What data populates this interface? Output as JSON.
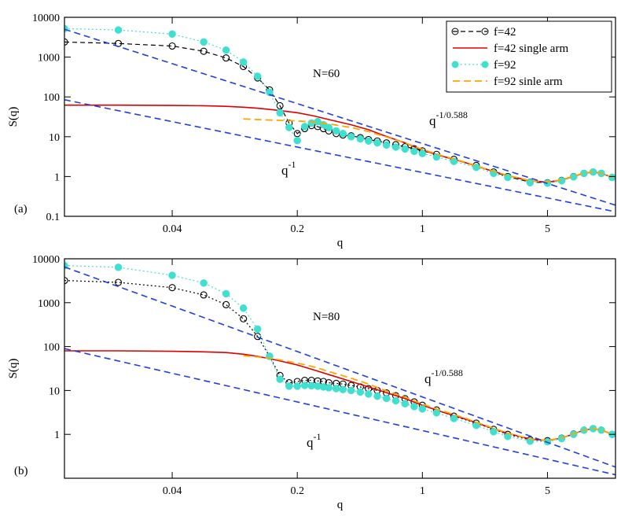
{
  "chart_data": [
    {
      "type": "line",
      "panel_label": "(a)",
      "annotation": "N=60",
      "xlabel": "q",
      "ylabel": "S(q)",
      "xscale": "log",
      "yscale": "log",
      "xlim": [
        0.01,
        12
      ],
      "ylim": [
        0.1,
        10000
      ],
      "x_ticks": [
        0.04,
        0.2,
        1,
        5
      ],
      "x_tick_labels": [
        "0.04",
        "0.2",
        "1",
        "5"
      ],
      "y_ticks": [
        0.1,
        1,
        10,
        100,
        1000,
        10000
      ],
      "y_tick_labels": [
        "0.1",
        "1",
        "10",
        "100",
        "1000",
        "10000"
      ],
      "power_law_labels": [
        {
          "base": "q",
          "exponent": "-1/0.588"
        },
        {
          "base": "q",
          "exponent": "-1"
        }
      ],
      "legend": [
        "f=42",
        "f=42 single arm",
        "f=92",
        "f=92 sinle arm"
      ],
      "series": [
        {
          "name": "f=42",
          "style": "black-open-circles-dashed",
          "color": "#000000",
          "x": [
            0.01,
            0.02,
            0.04,
            0.06,
            0.08,
            0.1,
            0.12,
            0.14,
            0.16,
            0.18,
            0.2,
            0.22,
            0.24,
            0.26,
            0.28,
            0.3,
            0.33,
            0.36,
            0.4,
            0.45,
            0.5,
            0.56,
            0.63,
            0.71,
            0.8,
            0.9,
            1.0,
            1.2,
            1.5,
            2.0,
            2.5,
            3.0,
            4.0,
            5.0,
            6.0,
            7.0,
            8.0,
            9.0,
            10.0,
            11.5
          ],
          "y": [
            2400,
            2200,
            1900,
            1400,
            950,
            580,
            300,
            150,
            60,
            22,
            12,
            16,
            19,
            18,
            16,
            14,
            12,
            11,
            10.5,
            9.5,
            8.5,
            7.8,
            7.0,
            6.3,
            5.6,
            5.0,
            4.4,
            3.6,
            2.7,
            1.9,
            1.3,
            1.0,
            0.72,
            0.7,
            0.8,
            1.0,
            1.2,
            1.3,
            1.2,
            0.95
          ]
        },
        {
          "name": "f=42 single arm",
          "style": "red-solid",
          "color": "#dd0000",
          "x": [
            0.01,
            0.02,
            0.04,
            0.06,
            0.08,
            0.1,
            0.12,
            0.15,
            0.2,
            0.25,
            0.3,
            0.4,
            0.5,
            0.6,
            0.8,
            1.0,
            1.3,
            1.7,
            2.2,
            3.0,
            4.0,
            5.0,
            6.0,
            7.0,
            8.0,
            9.0,
            10.0,
            11.5
          ],
          "y": [
            62,
            62,
            61,
            60,
            58,
            55,
            52,
            47,
            40,
            33,
            27,
            20,
            15,
            11,
            7.0,
            4.6,
            3.2,
            2.3,
            1.6,
            1.05,
            0.78,
            0.72,
            0.82,
            1.0,
            1.2,
            1.3,
            1.2,
            0.95
          ]
        },
        {
          "name": "f=92",
          "style": "turquoise-filled-circles-dotted",
          "color": "#40e0d0",
          "x": [
            0.01,
            0.02,
            0.04,
            0.06,
            0.08,
            0.1,
            0.12,
            0.14,
            0.16,
            0.18,
            0.2,
            0.22,
            0.24,
            0.26,
            0.28,
            0.3,
            0.33,
            0.36,
            0.4,
            0.45,
            0.5,
            0.56,
            0.63,
            0.71,
            0.8,
            0.9,
            1.0,
            1.2,
            1.5,
            2.0,
            2.5,
            3.0,
            4.0,
            5.0,
            6.0,
            7.0,
            8.0,
            9.0,
            10.0,
            11.5
          ],
          "y": [
            5200,
            4800,
            3800,
            2400,
            1500,
            750,
            330,
            130,
            40,
            17,
            8,
            18,
            22,
            24,
            20,
            17,
            14,
            12,
            10,
            8.8,
            7.8,
            7.0,
            6.2,
            5.5,
            4.9,
            4.3,
            3.8,
            3.1,
            2.4,
            1.7,
            1.2,
            0.95,
            0.7,
            0.68,
            0.78,
            0.98,
            1.2,
            1.3,
            1.2,
            0.95
          ]
        },
        {
          "name": "f=92 sinle arm",
          "style": "orange-dashed",
          "color": "#ffa500",
          "x": [
            0.1,
            0.12,
            0.15,
            0.2,
            0.25,
            0.3,
            0.4,
            0.5,
            0.6,
            0.8,
            1.0,
            1.3,
            1.7,
            2.2,
            3.0,
            4.0,
            5.0,
            6.0,
            7.0,
            8.0,
            9.0,
            10.0,
            11.5
          ],
          "y": [
            28,
            27,
            26,
            25,
            23,
            21,
            17,
            13.5,
            10.5,
            7.0,
            4.8,
            3.3,
            2.35,
            1.62,
            1.06,
            0.79,
            0.73,
            0.83,
            1.02,
            1.22,
            1.32,
            1.22,
            0.96
          ]
        },
        {
          "name": "power law q^-1/0.588",
          "style": "blue-dashed",
          "color": "#1f3fdf",
          "x": [
            0.01,
            12
          ],
          "y": [
            5000,
            0.19
          ]
        },
        {
          "name": "power law q^-1",
          "style": "blue-dashed",
          "color": "#1f3fdf",
          "x": [
            0.01,
            12
          ],
          "y": [
            85,
            0.13
          ]
        }
      ]
    },
    {
      "type": "line",
      "panel_label": "(b)",
      "annotation": "N=80",
      "xlabel": "q",
      "ylabel": "S(q)",
      "xscale": "log",
      "yscale": "log",
      "xlim": [
        0.01,
        12
      ],
      "ylim": [
        0.1,
        10000
      ],
      "x_ticks": [
        0.04,
        0.2,
        1,
        5
      ],
      "x_tick_labels": [
        "0.04",
        "0.2",
        "1",
        "5"
      ],
      "y_ticks": [
        1,
        10,
        100,
        1000,
        10000
      ],
      "y_tick_labels": [
        "1",
        "10",
        "100",
        "1000",
        "10000"
      ],
      "power_law_labels": [
        {
          "base": "q",
          "exponent": "-1/0.588"
        },
        {
          "base": "q",
          "exponent": "-1"
        }
      ],
      "series": [
        {
          "name": "f=42",
          "style": "black-open-circles-dotted",
          "color": "#000000",
          "x": [
            0.01,
            0.02,
            0.04,
            0.06,
            0.08,
            0.1,
            0.12,
            0.14,
            0.16,
            0.18,
            0.2,
            0.22,
            0.24,
            0.26,
            0.28,
            0.3,
            0.33,
            0.36,
            0.4,
            0.45,
            0.5,
            0.56,
            0.63,
            0.71,
            0.8,
            0.9,
            1.0,
            1.2,
            1.5,
            2.0,
            2.5,
            3.0,
            4.0,
            5.0,
            6.0,
            7.0,
            8.0,
            9.0,
            10.0,
            11.5
          ],
          "y": [
            3200,
            2900,
            2200,
            1500,
            900,
            430,
            170,
            60,
            22,
            15,
            16,
            17,
            17,
            16.5,
            16,
            15,
            14.5,
            14,
            13,
            12,
            11,
            10,
            8.8,
            7.6,
            6.5,
            5.5,
            4.6,
            3.6,
            2.6,
            1.8,
            1.3,
            1.0,
            0.75,
            0.72,
            0.82,
            1.02,
            1.25,
            1.35,
            1.25,
            1.0
          ]
        },
        {
          "name": "f=42 single arm",
          "style": "red-solid",
          "color": "#dd0000",
          "x": [
            0.01,
            0.02,
            0.04,
            0.06,
            0.08,
            0.1,
            0.12,
            0.15,
            0.2,
            0.25,
            0.3,
            0.4,
            0.5,
            0.6,
            0.8,
            1.0,
            1.3,
            1.7,
            2.2,
            3.0,
            4.0,
            5.0,
            6.0,
            7.0,
            8.0,
            9.0,
            10.0,
            11.5
          ],
          "y": [
            80,
            80,
            78,
            76,
            73,
            67,
            60,
            50,
            38,
            29,
            23,
            16,
            12,
            9.5,
            6.5,
            4.6,
            3.2,
            2.3,
            1.6,
            1.05,
            0.78,
            0.72,
            0.82,
            1.02,
            1.25,
            1.35,
            1.25,
            1.0
          ]
        },
        {
          "name": "f=92",
          "style": "turquoise-filled-circles-dotted",
          "color": "#40e0d0",
          "x": [
            0.01,
            0.02,
            0.04,
            0.06,
            0.08,
            0.1,
            0.12,
            0.14,
            0.16,
            0.18,
            0.2,
            0.22,
            0.24,
            0.26,
            0.28,
            0.3,
            0.33,
            0.36,
            0.4,
            0.45,
            0.5,
            0.56,
            0.63,
            0.71,
            0.8,
            0.9,
            1.0,
            1.2,
            1.5,
            2.0,
            2.5,
            3.0,
            4.0,
            5.0,
            6.0,
            7.0,
            8.0,
            9.0,
            10.0,
            11.5
          ],
          "y": [
            7000,
            6400,
            4200,
            2800,
            1600,
            750,
            250,
            60,
            18,
            12.5,
            12.5,
            13,
            12.8,
            12.5,
            12,
            11.5,
            11,
            10.5,
            10,
            9.2,
            8.3,
            7.4,
            6.6,
            5.8,
            5.0,
            4.3,
            3.8,
            3.1,
            2.3,
            1.6,
            1.15,
            0.9,
            0.7,
            0.68,
            0.8,
            1.0,
            1.25,
            1.35,
            1.25,
            1.0
          ]
        },
        {
          "name": "f=92 sinle arm",
          "style": "orange-dashed",
          "color": "#ffa500",
          "x": [
            0.1,
            0.12,
            0.15,
            0.2,
            0.25,
            0.3,
            0.4,
            0.5,
            0.6,
            0.8,
            1.0,
            1.3,
            1.7,
            2.2,
            3.0,
            4.0,
            5.0,
            6.0,
            7.0,
            8.0,
            9.0,
            10.0,
            11.5
          ],
          "y": [
            62,
            58,
            52,
            42,
            34,
            27,
            19,
            14,
            10.5,
            7.0,
            4.9,
            3.4,
            2.4,
            1.65,
            1.07,
            0.79,
            0.73,
            0.83,
            1.03,
            1.26,
            1.36,
            1.26,
            1.01
          ]
        },
        {
          "name": "power law q^-1/0.588",
          "style": "blue-dashed",
          "color": "#1f3fdf",
          "x": [
            0.01,
            12
          ],
          "y": [
            6500,
            0.18
          ]
        },
        {
          "name": "power law q^-1",
          "style": "blue-dashed",
          "color": "#1f3fdf",
          "x": [
            0.01,
            12
          ],
          "y": [
            90,
            0.12
          ]
        }
      ]
    }
  ]
}
